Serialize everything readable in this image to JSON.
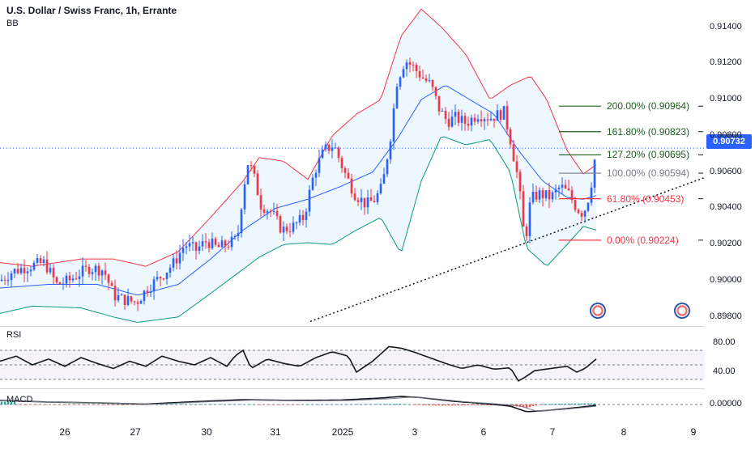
{
  "header": {
    "title": "U.S. Dollar / Swiss Franc, 1h, Errante",
    "indicator": "BB"
  },
  "current_price": "0.90732",
  "colors": {
    "up": "#2962ff",
    "down": "#f23645",
    "bb_upper": "#f23645",
    "bb_lower": "#089981",
    "bb_mid": "#2962ff",
    "bb_fill": "rgba(33,150,243,0.08)",
    "fib_green": "#1b5e20",
    "fib_gray": "#787b86",
    "fib_red": "#f23645",
    "axis_bg": "#ffffff"
  },
  "price_axis": [
    "0.91400",
    "0.91200",
    "0.91000",
    "0.90800",
    "0.90600",
    "0.90400",
    "0.90200",
    "0.90000",
    "0.89800"
  ],
  "rsi_axis": [
    "80.00",
    "40.00"
  ],
  "macd_axis": [
    "0.00000"
  ],
  "x_axis": [
    "26",
    "27",
    "30",
    "31",
    "2025",
    "3",
    "6",
    "7",
    "8",
    "9"
  ],
  "panes": {
    "rsi_label": "RSI",
    "macd_label": "MACD"
  },
  "chart_data": {
    "type": "candlestick",
    "symbol": "U.S. Dollar / Swiss Franc",
    "timeframe": "1h",
    "ylim": [
      0.8975,
      0.9155
    ],
    "anchor_points": [
      [
        0,
        0.9
      ],
      [
        15,
        0.9005
      ],
      [
        35,
        0.9008
      ],
      [
        55,
        0.901
      ],
      [
        70,
        0.8998
      ],
      [
        85,
        0.9
      ],
      [
        98,
        0.9004
      ],
      [
        110,
        0.9007
      ],
      [
        128,
        0.9006
      ],
      [
        140,
        0.8992
      ],
      [
        150,
        0.899
      ],
      [
        168,
        0.8988
      ],
      [
        182,
        0.8996
      ],
      [
        200,
        0.9003
      ],
      [
        215,
        0.901
      ],
      [
        228,
        0.902
      ],
      [
        242,
        0.9017
      ],
      [
        255,
        0.9022
      ],
      [
        268,
        0.9018
      ],
      [
        280,
        0.902
      ],
      [
        293,
        0.9023
      ],
      [
        300,
        0.905
      ],
      [
        306,
        0.9065
      ],
      [
        312,
        0.906
      ],
      [
        322,
        0.9042
      ],
      [
        335,
        0.9038
      ],
      [
        348,
        0.9028
      ],
      [
        362,
        0.903
      ],
      [
        375,
        0.9035
      ],
      [
        388,
        0.906
      ],
      [
        400,
        0.9072
      ],
      [
        412,
        0.9075
      ],
      [
        425,
        0.906
      ],
      [
        438,
        0.9048
      ],
      [
        452,
        0.9042
      ],
      [
        463,
        0.9045
      ],
      [
        472,
        0.9052
      ],
      [
        482,
        0.908
      ],
      [
        490,
        0.911
      ],
      [
        500,
        0.9122
      ],
      [
        510,
        0.9118
      ],
      [
        522,
        0.9112
      ],
      [
        532,
        0.9108
      ],
      [
        542,
        0.9095
      ],
      [
        552,
        0.9088
      ],
      [
        562,
        0.909
      ],
      [
        575,
        0.9087
      ],
      [
        590,
        0.9092
      ],
      [
        605,
        0.909
      ],
      [
        622,
        0.9093
      ],
      [
        630,
        0.9078
      ],
      [
        640,
        0.9055
      ],
      [
        648,
        0.902
      ],
      [
        655,
        0.9045
      ],
      [
        665,
        0.9048
      ],
      [
        680,
        0.9046
      ],
      [
        692,
        0.9052
      ],
      [
        702,
        0.9048
      ],
      [
        712,
        0.904
      ],
      [
        720,
        0.9037
      ],
      [
        728,
        0.9048
      ],
      [
        736,
        0.9073
      ]
    ],
    "bollinger": {
      "upper": [
        [
          0,
          0.901
        ],
        [
          40,
          0.9008
        ],
        [
          100,
          0.9012
        ],
        [
          140,
          0.9012
        ],
        [
          180,
          0.9008
        ],
        [
          220,
          0.9016
        ],
        [
          260,
          0.9035
        ],
        [
          300,
          0.9055
        ],
        [
          320,
          0.9068
        ],
        [
          350,
          0.9066
        ],
        [
          380,
          0.9056
        ],
        [
          410,
          0.908
        ],
        [
          440,
          0.9092
        ],
        [
          470,
          0.91
        ],
        [
          495,
          0.9135
        ],
        [
          520,
          0.915
        ],
        [
          545,
          0.914
        ],
        [
          575,
          0.9125
        ],
        [
          605,
          0.91
        ],
        [
          630,
          0.9108
        ],
        [
          655,
          0.9113
        ],
        [
          675,
          0.91
        ],
        [
          700,
          0.9072
        ],
        [
          720,
          0.9059
        ],
        [
          736,
          0.9064
        ]
      ],
      "lower": [
        [
          0,
          0.8982
        ],
        [
          40,
          0.8986
        ],
        [
          100,
          0.8985
        ],
        [
          140,
          0.898
        ],
        [
          170,
          0.8977
        ],
        [
          220,
          0.898
        ],
        [
          260,
          0.8993
        ],
        [
          290,
          0.9003
        ],
        [
          320,
          0.9013
        ],
        [
          350,
          0.902
        ],
        [
          380,
          0.9021
        ],
        [
          410,
          0.902
        ],
        [
          440,
          0.9028
        ],
        [
          470,
          0.9035
        ],
        [
          495,
          0.9015
        ],
        [
          520,
          0.9055
        ],
        [
          545,
          0.908
        ],
        [
          575,
          0.9075
        ],
        [
          605,
          0.9078
        ],
        [
          630,
          0.906
        ],
        [
          650,
          0.9018
        ],
        [
          675,
          0.9008
        ],
        [
          700,
          0.902
        ],
        [
          720,
          0.903
        ],
        [
          736,
          0.9028
        ]
      ],
      "middle": [
        [
          0,
          0.8996
        ],
        [
          60,
          0.8998
        ],
        [
          120,
          0.8998
        ],
        [
          170,
          0.8992
        ],
        [
          220,
          0.8998
        ],
        [
          260,
          0.9012
        ],
        [
          300,
          0.9028
        ],
        [
          340,
          0.904
        ],
        [
          380,
          0.9045
        ],
        [
          420,
          0.9052
        ],
        [
          460,
          0.906
        ],
        [
          490,
          0.9078
        ],
        [
          520,
          0.91
        ],
        [
          550,
          0.9108
        ],
        [
          580,
          0.91
        ],
        [
          610,
          0.9092
        ],
        [
          640,
          0.9072
        ],
        [
          670,
          0.9055
        ],
        [
          700,
          0.9046
        ],
        [
          720,
          0.9045
        ],
        [
          736,
          0.9047
        ]
      ]
    },
    "fibonacci": [
      {
        "ratio": "200.00%",
        "price": "0.90964",
        "color": "#1b5e20"
      },
      {
        "ratio": "161.80%",
        "price": "0.90823",
        "color": "#1b5e20"
      },
      {
        "ratio": "127.20%",
        "price": "0.90695",
        "color": "#1b5e20"
      },
      {
        "ratio": "100.00%",
        "price": "0.90594",
        "color": "#787b86"
      },
      {
        "ratio": "61.80%",
        "price": "0.90453",
        "color": "#f23645"
      },
      {
        "ratio": "0.00%",
        "price": "0.90224",
        "color": "#f23645"
      }
    ],
    "trendline": {
      "style": "dotted",
      "from": [
        383,
        0.89775
      ],
      "to": [
        870,
        0.9057
      ]
    },
    "current_price_line": 0.90732,
    "rsi": {
      "ylim": [
        20,
        100
      ],
      "overbought": 70,
      "oversold": 30,
      "points": [
        [
          0,
          55
        ],
        [
          20,
          62
        ],
        [
          40,
          50
        ],
        [
          60,
          58
        ],
        [
          80,
          48
        ],
        [
          100,
          60
        ],
        [
          120,
          52
        ],
        [
          140,
          45
        ],
        [
          160,
          55
        ],
        [
          180,
          48
        ],
        [
          200,
          62
        ],
        [
          220,
          55
        ],
        [
          240,
          50
        ],
        [
          260,
          60
        ],
        [
          280,
          48
        ],
        [
          290,
          62
        ],
        [
          300,
          70
        ],
        [
          310,
          45
        ],
        [
          330,
          58
        ],
        [
          350,
          52
        ],
        [
          370,
          48
        ],
        [
          390,
          60
        ],
        [
          410,
          68
        ],
        [
          430,
          62
        ],
        [
          440,
          40
        ],
        [
          460,
          55
        ],
        [
          480,
          75
        ],
        [
          495,
          73
        ],
        [
          510,
          68
        ],
        [
          530,
          60
        ],
        [
          550,
          52
        ],
        [
          570,
          45
        ],
        [
          590,
          50
        ],
        [
          610,
          44
        ],
        [
          630,
          46
        ],
        [
          640,
          28
        ],
        [
          648,
          33
        ],
        [
          660,
          42
        ],
        [
          680,
          45
        ],
        [
          700,
          48
        ],
        [
          712,
          40
        ],
        [
          722,
          45
        ],
        [
          736,
          58
        ]
      ]
    },
    "macd": {
      "points": [
        [
          0,
          0.5
        ],
        [
          60,
          0.3
        ],
        [
          120,
          0.2
        ],
        [
          180,
          0.05
        ],
        [
          240,
          0.35
        ],
        [
          300,
          0.6
        ],
        [
          360,
          0.5
        ],
        [
          420,
          0.55
        ],
        [
          470,
          0.8
        ],
        [
          495,
          1.0
        ],
        [
          520,
          0.85
        ],
        [
          560,
          0.4
        ],
        [
          600,
          0.1
        ],
        [
          630,
          -0.2
        ],
        [
          650,
          -0.9
        ],
        [
          680,
          -0.7
        ],
        [
          710,
          -0.4
        ],
        [
          736,
          -0.1
        ]
      ]
    }
  }
}
